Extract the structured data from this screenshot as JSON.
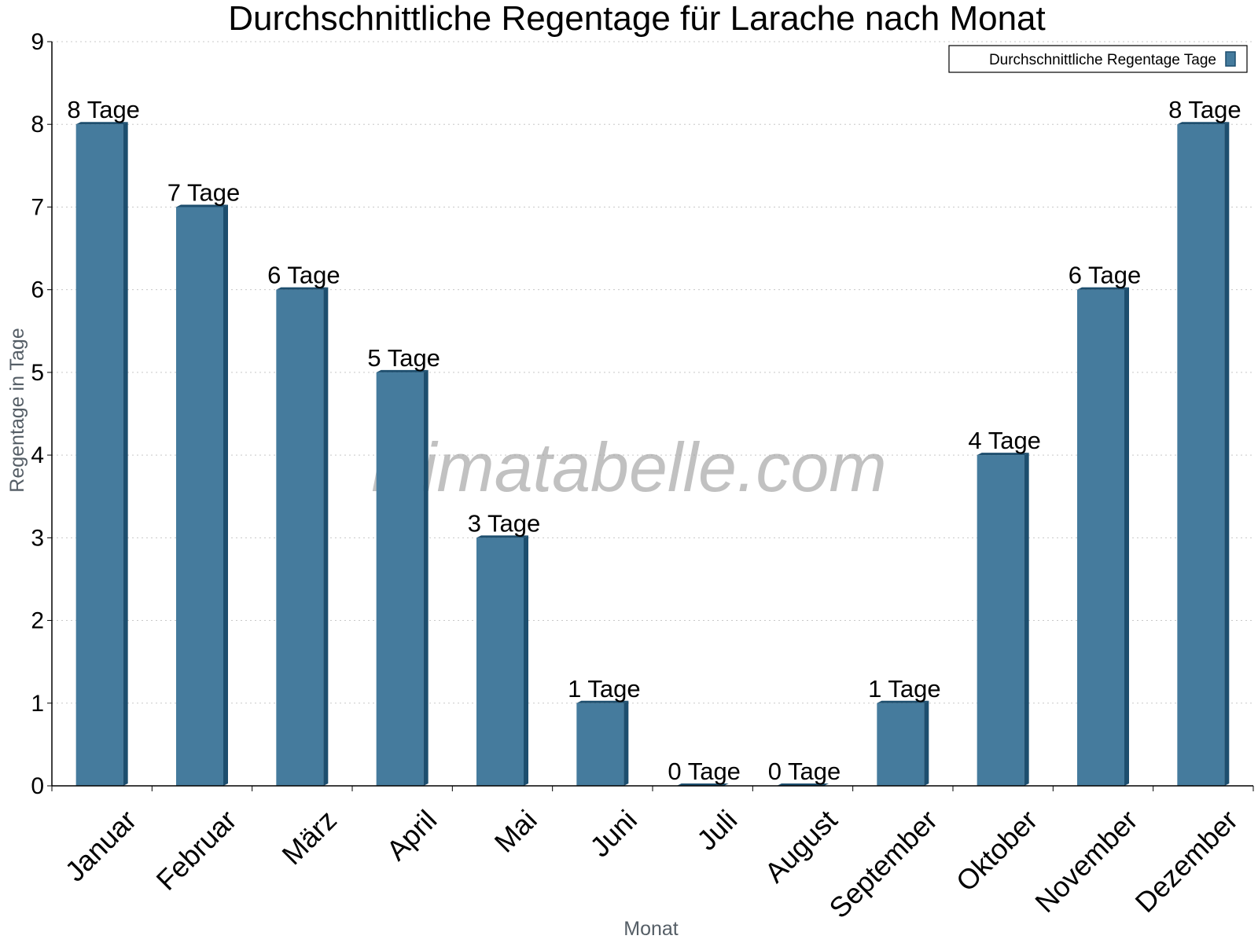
{
  "chart_data": {
    "type": "bar",
    "title": "Durchschnittliche Regentage für Larache nach Monat",
    "xlabel": "Monat",
    "ylabel": "Regentage in Tage",
    "ylim": [
      0,
      9
    ],
    "yticks": [
      "0",
      "1",
      "2",
      "3",
      "4",
      "5",
      "6",
      "7",
      "8",
      "9"
    ],
    "categories": [
      "Januar",
      "Februar",
      "März",
      "April",
      "Mai",
      "Juni",
      "Juli",
      "August",
      "September",
      "Oktober",
      "November",
      "Dezember"
    ],
    "series": [
      {
        "name": "Durchschnittliche Regentage Tage",
        "values": [
          8,
          7,
          6,
          5,
          3,
          1,
          0,
          0,
          1,
          4,
          6,
          8
        ],
        "labels": [
          "8 Tage",
          "7 Tage",
          "6 Tage",
          "5 Tage",
          "3 Tage",
          "1 Tage",
          "0 Tage",
          "0 Tage",
          "1 Tage",
          "4 Tage",
          "6 Tage",
          "8 Tage"
        ],
        "color": "#457b9d",
        "side_color": "#1d4e6e"
      }
    ],
    "grid": true,
    "legend_position": "top-right",
    "watermark": "klimatabelle.com"
  }
}
